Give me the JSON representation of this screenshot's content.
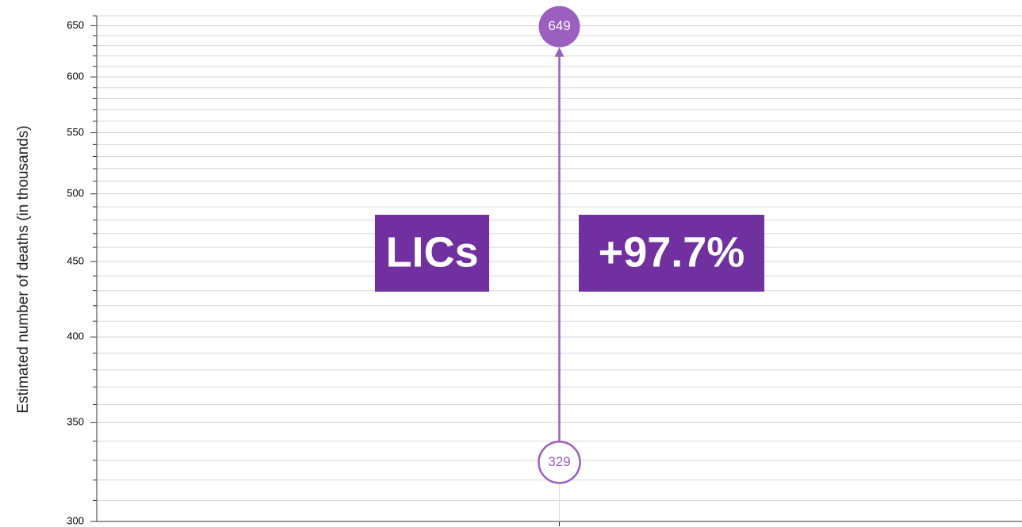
{
  "chart_data": {
    "type": "dumbbell",
    "ylabel": "Estimated number of deaths (in thousands)",
    "log_scale": true,
    "grid": true,
    "ylim": [
      300,
      660
    ],
    "yticks": [
      300,
      350,
      400,
      450,
      500,
      550,
      600,
      650
    ],
    "yminorticks": [
      310,
      320,
      330,
      340,
      360,
      370,
      380,
      390,
      410,
      420,
      430,
      440,
      460,
      470,
      480,
      490,
      510,
      520,
      530,
      540,
      560,
      570,
      580,
      590,
      610,
      620,
      630,
      640,
      660
    ],
    "categories": [
      null
    ],
    "start": [
      329
    ],
    "end": [
      649
    ],
    "color": "#9b5fc0",
    "annotations": [
      {
        "text": "LICs",
        "color": "#7030a0"
      },
      {
        "text": "+97.7%",
        "color": "#7030a0"
      }
    ]
  }
}
